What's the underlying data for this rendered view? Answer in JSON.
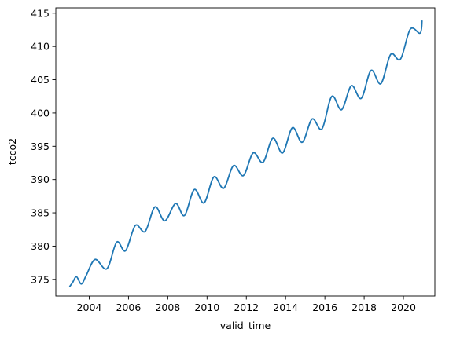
{
  "chart_data": {
    "type": "line",
    "title": "",
    "xlabel": "valid_time",
    "ylabel": "tcco2",
    "xlim": [
      2002.3,
      2021.6
    ],
    "ylim": [
      372.5,
      415.8
    ],
    "x_ticks": [
      2004,
      2006,
      2008,
      2010,
      2012,
      2014,
      2016,
      2018,
      2020
    ],
    "x_tick_labels": [
      "2004",
      "2006",
      "2008",
      "2010",
      "2012",
      "2014",
      "2016",
      "2018",
      "2020"
    ],
    "y_ticks": [
      375,
      380,
      385,
      390,
      395,
      400,
      405,
      410,
      415
    ],
    "y_tick_labels": [
      "375",
      "380",
      "385",
      "390",
      "395",
      "400",
      "405",
      "410",
      "415"
    ],
    "grid": false,
    "legend": false,
    "line_color": "#1f77b4",
    "series": [
      {
        "x": [
          2003.0,
          2003.15,
          2003.35,
          2003.6,
          2003.85,
          2004.3,
          2004.9,
          2005.4,
          2005.85,
          2006.35,
          2006.85,
          2007.35,
          2007.85,
          2008.4,
          2008.85,
          2009.35,
          2009.85,
          2010.35,
          2010.85,
          2011.35,
          2011.85,
          2012.35,
          2012.85,
          2013.35,
          2013.85,
          2014.35,
          2014.85,
          2015.35,
          2015.85,
          2016.35,
          2016.85,
          2017.35,
          2017.85,
          2018.35,
          2018.85,
          2019.35,
          2019.85,
          2020.35,
          2020.85,
          2020.95
        ],
        "y": [
          373.9,
          374.5,
          375.4,
          374.3,
          375.6,
          378.0,
          376.6,
          380.6,
          379.3,
          383.1,
          382.2,
          385.9,
          383.8,
          386.4,
          384.6,
          388.5,
          386.5,
          390.4,
          388.7,
          392.1,
          390.6,
          394.0,
          392.6,
          396.2,
          394.0,
          397.8,
          395.6,
          399.1,
          397.6,
          402.5,
          400.5,
          404.1,
          402.2,
          406.4,
          404.4,
          408.8,
          408.1,
          412.6,
          412.0,
          413.9
        ]
      }
    ]
  }
}
